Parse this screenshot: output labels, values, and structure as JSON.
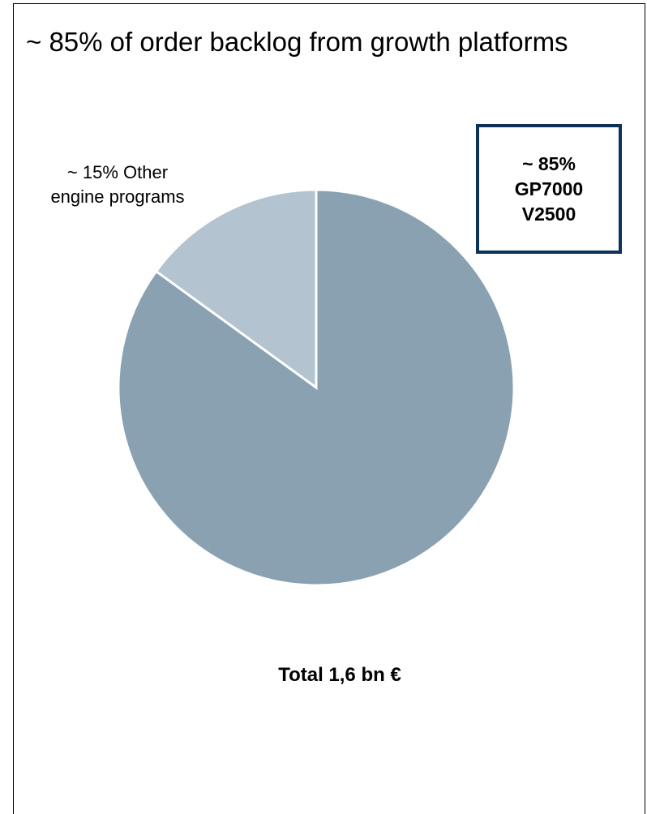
{
  "chart_data": {
    "type": "pie",
    "title": "~ 85% of order backlog from growth platforms",
    "slices": [
      {
        "label": "~ 85% GP7000 V2500",
        "value": 85,
        "color": "#8aa1b2"
      },
      {
        "label": "~ 15% Other engine programs",
        "value": 15,
        "color": "#b3c3d0"
      }
    ],
    "labels": {
      "main_lines": [
        "~ 85%",
        "GP7000",
        "V2500"
      ],
      "other_lines": [
        "~ 15% Other",
        "engine programs"
      ]
    },
    "total": "Total 1,6 bn €",
    "slice_border_color": "#ffffff",
    "box_border_color": "#0d3158"
  }
}
